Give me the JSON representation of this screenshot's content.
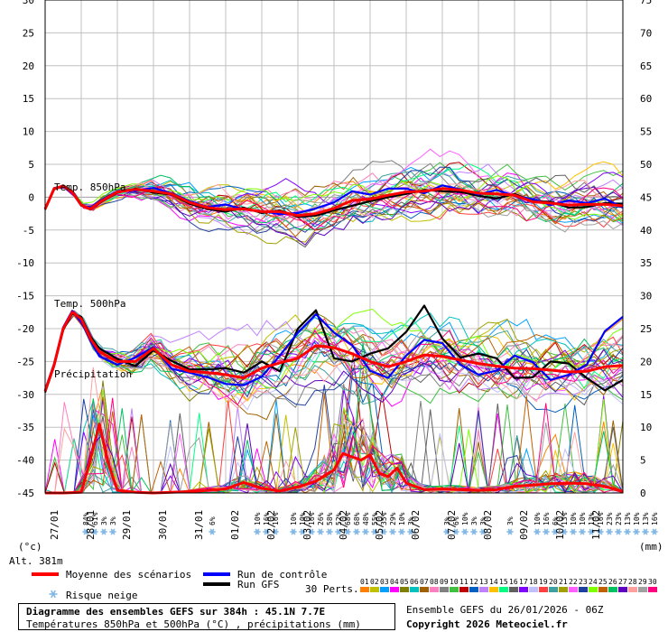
{
  "chart_data": {
    "type": "line",
    "left_axis": {
      "unit": "(°c)",
      "ticks": [
        30,
        25,
        20,
        15,
        10,
        5,
        0,
        -5,
        -10,
        -15,
        -20,
        -25,
        -30,
        -35,
        -40,
        -45
      ],
      "range": [
        -45,
        30
      ]
    },
    "right_axis": {
      "unit": "(mm)",
      "ticks": [
        75,
        70,
        65,
        60,
        55,
        50,
        45,
        40,
        35,
        30,
        25,
        20,
        15,
        10,
        5,
        0
      ],
      "range": [
        0,
        75
      ]
    },
    "x_labels": [
      "27/01",
      "28/01",
      "29/01",
      "30/01",
      "31/01",
      "01/02",
      "02/02",
      "03/02",
      "04/02",
      "05/02",
      "06/02",
      "07/02",
      "08/02",
      "09/02",
      "10/02",
      "11/02"
    ],
    "x_range_days": [
      0,
      16
    ],
    "grid": true,
    "annotations": [
      "Temp. 850hPa",
      "Temp. 500hPa",
      "Précipitation"
    ],
    "snow_risk_labels": [
      {
        "day": 1.12,
        "pct": "84%"
      },
      {
        "day": 1.37,
        "pct": "61%"
      },
      {
        "day": 1.62,
        "pct": "3%"
      },
      {
        "day": 1.87,
        "pct": "3%"
      },
      {
        "day": 4.62,
        "pct": "6%"
      },
      {
        "day": 5.87,
        "pct": "10%"
      },
      {
        "day": 6.12,
        "pct": "16%"
      },
      {
        "day": 6.37,
        "pct": "16%"
      },
      {
        "day": 6.87,
        "pct": "10%"
      },
      {
        "day": 7.12,
        "pct": "10%"
      },
      {
        "day": 7.37,
        "pct": "16%"
      },
      {
        "day": 7.62,
        "pct": "26%"
      },
      {
        "day": 7.87,
        "pct": "58%"
      },
      {
        "day": 8.12,
        "pct": "52%"
      },
      {
        "day": 8.37,
        "pct": "68%"
      },
      {
        "day": 8.62,
        "pct": "68%"
      },
      {
        "day": 8.87,
        "pct": "48%"
      },
      {
        "day": 9.12,
        "pct": "55%"
      },
      {
        "day": 9.37,
        "pct": "35%"
      },
      {
        "day": 9.62,
        "pct": "29%"
      },
      {
        "day": 9.87,
        "pct": "10%"
      },
      {
        "day": 10.12,
        "pct": "3%"
      },
      {
        "day": 11.12,
        "pct": "3%"
      },
      {
        "day": 11.37,
        "pct": "6%"
      },
      {
        "day": 11.62,
        "pct": "10%"
      },
      {
        "day": 11.87,
        "pct": "3%"
      },
      {
        "day": 12.12,
        "pct": "3%"
      },
      {
        "day": 12.87,
        "pct": "3%"
      },
      {
        "day": 13.62,
        "pct": "10%"
      },
      {
        "day": 13.87,
        "pct": "16%"
      },
      {
        "day": 14.12,
        "pct": "6%"
      },
      {
        "day": 14.37,
        "pct": "13%"
      },
      {
        "day": 14.62,
        "pct": "10%"
      },
      {
        "day": 14.87,
        "pct": "10%"
      },
      {
        "day": 15.12,
        "pct": "13%"
      },
      {
        "day": 15.37,
        "pct": "16%"
      },
      {
        "day": 15.62,
        "pct": "23%"
      },
      {
        "day": 15.87,
        "pct": "23%"
      },
      {
        "day": 16.12,
        "pct": "13%"
      },
      {
        "day": 16.37,
        "pct": "10%"
      },
      {
        "day": 16.62,
        "pct": "13%"
      },
      {
        "day": 16.87,
        "pct": "16%"
      }
    ],
    "series": [
      {
        "name": "Moyenne des scénarios",
        "variable": "t850",
        "color": "#ff0000",
        "x": [
          0,
          0.25,
          0.5,
          0.75,
          1,
          1.25,
          1.5,
          2,
          2.5,
          3,
          3.5,
          4,
          4.5,
          5,
          5.5,
          6,
          6.5,
          7,
          7.5,
          8,
          8.5,
          9,
          9.5,
          10,
          10.5,
          11,
          11.5,
          12,
          12.5,
          13,
          13.5,
          14,
          14.5,
          15,
          15.5,
          16
        ],
        "values": [
          -1.8,
          1.3,
          1.7,
          0.8,
          -1.2,
          -1.8,
          -0.8,
          0.8,
          1.2,
          0.9,
          0.5,
          -0.8,
          -1.6,
          -1.9,
          -1.8,
          -2.2,
          -2.2,
          -2.8,
          -2.5,
          -1.7,
          -0.5,
          -0.3,
          0.3,
          0.8,
          0.9,
          1.3,
          1.1,
          0.6,
          0.5,
          0.3,
          -0.7,
          -0.9,
          -1.2,
          -1.1,
          -1.1,
          -1.3
        ]
      },
      {
        "name": "Run de contrôle",
        "variable": "t850",
        "color": "#0000ff",
        "x": [
          0,
          0.25,
          0.5,
          0.75,
          1,
          1.25,
          1.5,
          2,
          2.5,
          3,
          3.5,
          4,
          4.5,
          5,
          5.5,
          6,
          6.5,
          7,
          7.5,
          8,
          8.5,
          9,
          9.5,
          10,
          10.5,
          11,
          11.5,
          12,
          12.5,
          13,
          13.5,
          14,
          14.5,
          15,
          15.5,
          16
        ],
        "values": [
          -1.7,
          1.4,
          1.6,
          0.7,
          -1.3,
          -1.6,
          -0.6,
          0.9,
          1.0,
          1.4,
          0.6,
          -0.6,
          -1.5,
          -1.1,
          -1.9,
          -2.1,
          -2.6,
          -2.4,
          -1.7,
          -0.8,
          0.9,
          0.4,
          1.3,
          1.3,
          0.6,
          1.8,
          1.2,
          0.4,
          1.1,
          0.2,
          -0.3,
          -1.2,
          -0.5,
          -0.9,
          -0.2,
          -1.6
        ]
      },
      {
        "name": "Run GFS",
        "variable": "t850",
        "color": "#000000",
        "x": [
          0,
          0.25,
          0.5,
          0.75,
          1,
          1.25,
          1.5,
          2,
          2.5,
          3,
          3.5,
          4,
          4.5,
          5,
          5.5,
          6,
          6.5,
          7,
          7.5,
          8,
          8.5,
          9,
          9.5,
          10,
          10.5,
          11,
          11.5,
          12,
          12.5,
          13,
          13.5,
          14,
          14.5,
          15,
          15.5,
          16
        ],
        "values": [
          -1.9,
          1.2,
          1.8,
          0.9,
          -1.1,
          -1.9,
          -0.9,
          0.7,
          1.3,
          0.7,
          0.4,
          -1.0,
          -1.8,
          -2.2,
          -1.6,
          -2.4,
          -2.0,
          -3.0,
          -2.8,
          -2.0,
          -1.3,
          -0.6,
          0.0,
          0.5,
          1.1,
          0.9,
          0.8,
          0.2,
          -0.2,
          0.5,
          -0.6,
          -0.7,
          -1.6,
          -1.5,
          -0.9,
          -1.0
        ]
      },
      {
        "name": "Moyenne des scénarios",
        "variable": "t500",
        "color": "#ff0000",
        "x": [
          0,
          0.25,
          0.5,
          0.75,
          1,
          1.25,
          1.5,
          2,
          2.5,
          3,
          3.5,
          4,
          4.5,
          5,
          5.5,
          6,
          6.5,
          7,
          7.5,
          8,
          8.5,
          9,
          9.5,
          10,
          10.5,
          11,
          11.5,
          12,
          12.5,
          13,
          13.5,
          14,
          14.5,
          15,
          15.5,
          16
        ],
        "values": [
          -29.5,
          -25.5,
          -20.0,
          -17.5,
          -18.5,
          -21.5,
          -23.5,
          -25.0,
          -25.0,
          -23.0,
          -25.5,
          -26.5,
          -26.7,
          -27.0,
          -27.5,
          -26.0,
          -25.2,
          -24.5,
          -22.6,
          -22.9,
          -23.8,
          -25.0,
          -25.8,
          -25.0,
          -24.0,
          -24.2,
          -24.8,
          -25.3,
          -25.7,
          -26.0,
          -26.1,
          -26.3,
          -26.6,
          -26.5,
          -25.8,
          -25.6
        ]
      },
      {
        "name": "Run de contrôle",
        "variable": "t500",
        "color": "#0000ff",
        "x": [
          0,
          0.25,
          0.5,
          0.75,
          1,
          1.25,
          1.5,
          2,
          2.5,
          3,
          3.5,
          4,
          4.5,
          5,
          5.5,
          6,
          6.5,
          7,
          7.5,
          8,
          8.5,
          9,
          9.5,
          10,
          10.5,
          11,
          11.5,
          12,
          12.5,
          13,
          13.5,
          14,
          14.5,
          15,
          15.5,
          16
        ],
        "values": [
          -29.3,
          -25.3,
          -19.8,
          -17.3,
          -18.9,
          -21.8,
          -24.2,
          -25.5,
          -24.4,
          -22.8,
          -26.1,
          -26.7,
          -27.4,
          -28.4,
          -28.6,
          -27.3,
          -24.1,
          -20.6,
          -17.8,
          -20.6,
          -22.5,
          -26.4,
          -27.5,
          -24.1,
          -21.7,
          -22.2,
          -25.5,
          -27.0,
          -26.4,
          -24.1,
          -25.1,
          -27.8,
          -27.0,
          -25.5,
          -20.4,
          -18.2
        ]
      },
      {
        "name": "Run GFS",
        "variable": "t500",
        "color": "#000000",
        "x": [
          0,
          0.25,
          0.5,
          0.75,
          1,
          1.25,
          1.5,
          2,
          2.5,
          3,
          3.5,
          4,
          4.5,
          5,
          5.5,
          6,
          6.5,
          7,
          7.5,
          8,
          8.5,
          9,
          9.5,
          10,
          10.5,
          11,
          11.5,
          12,
          12.5,
          13,
          13.5,
          14,
          14.5,
          15,
          15.5,
          16
        ],
        "values": [
          -29.7,
          -25.7,
          -20.2,
          -17.7,
          -18.2,
          -21.2,
          -23.0,
          -24.6,
          -25.7,
          -23.3,
          -24.9,
          -26.2,
          -26.2,
          -26.0,
          -26.7,
          -25.0,
          -26.5,
          -20.0,
          -17.2,
          -24.5,
          -25.0,
          -23.8,
          -23.0,
          -20.5,
          -16.5,
          -21.5,
          -24.4,
          -23.8,
          -24.5,
          -27.5,
          -27.4,
          -25.0,
          -25.3,
          -27.5,
          -29.4,
          -27.8
        ]
      },
      {
        "name": "Moyenne des scénarios",
        "variable": "precip_mm",
        "color": "#ff0000",
        "x": [
          0,
          0.5,
          1,
          1.25,
          1.5,
          1.75,
          2,
          2.5,
          3,
          3.5,
          4,
          4.5,
          5,
          5.5,
          6,
          6.5,
          7,
          7.5,
          8,
          8.25,
          8.5,
          8.75,
          9,
          9.25,
          9.5,
          9.75,
          10,
          10.5,
          11,
          11.5,
          12,
          12.5,
          13,
          13.5,
          14,
          14.5,
          15,
          15.5,
          16
        ],
        "values": [
          0,
          0,
          0.1,
          5.0,
          10.5,
          4.5,
          0.4,
          0.1,
          0,
          0.1,
          0.2,
          0.4,
          0.6,
          1.6,
          0.7,
          0.3,
          0.9,
          1.8,
          3.5,
          6.0,
          5.5,
          5.0,
          5.8,
          3.0,
          2.5,
          3.8,
          1.5,
          0.5,
          0.6,
          0.5,
          0.4,
          0.5,
          1.0,
          1.2,
          1.4,
          1.5,
          1.4,
          1.0,
          0.2
        ]
      }
    ]
  },
  "labels": {
    "alt": "Alt. 381m",
    "legend_mean": "Moyenne des scénarios",
    "legend_control": "Run de contrôle",
    "legend_gfs": "Run GFS",
    "legend_snow": "Risque neige",
    "perts_label": "30 Perts.",
    "perts_numbers": [
      "01",
      "02",
      "03",
      "04",
      "05",
      "06",
      "07",
      "08",
      "09",
      "10",
      "11",
      "12",
      "13",
      "14",
      "15",
      "16",
      "17",
      "18",
      "19",
      "20",
      "21",
      "22",
      "23",
      "24",
      "25",
      "26",
      "27",
      "28",
      "29",
      "30"
    ],
    "footer_title": "Diagramme des ensembles GEFS sur 384h : 45.1N 7.7E",
    "footer_subtitle": "Températures 850hPa et 500hPa (°C) , précipitations (mm)",
    "ensemble_run": "Ensemble GEFS du 26/01/2026 - 06Z",
    "copyright": "Copyright 2026 Meteociel.fr"
  },
  "colors": {
    "mean": "#ff0000",
    "control": "#0000ff",
    "gfs": "#000000",
    "grid": "#c0c0c0",
    "snow": "#7fb6e6",
    "perts": [
      "#ff8000",
      "#c0c000",
      "#00a0ff",
      "#ff00ff",
      "#808000",
      "#00c0c0",
      "#a06000",
      "#ff80c0",
      "#808080",
      "#40c040",
      "#c00000",
      "#0060c0",
      "#c080ff",
      "#ffc000",
      "#00ff80",
      "#606060",
      "#8000ff",
      "#c0c0ff",
      "#ff4040",
      "#40a0a0",
      "#a0a000",
      "#ff60ff",
      "#2040a0",
      "#80ff00",
      "#c06000",
      "#00c060",
      "#6000c0",
      "#ffa0a0",
      "#a0a0a0",
      "#ff0080"
    ]
  }
}
